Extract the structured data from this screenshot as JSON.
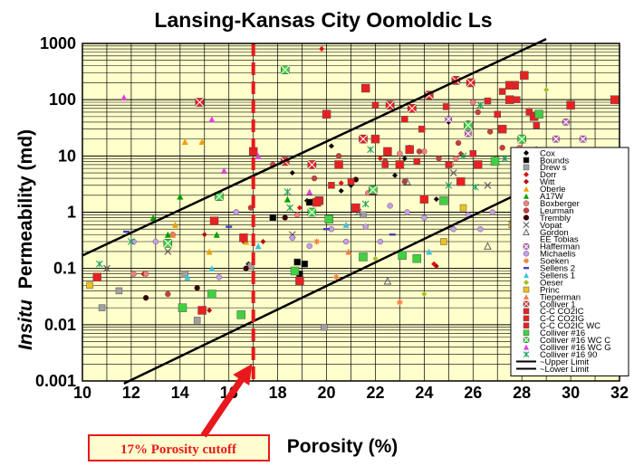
{
  "chart_data": {
    "type": "scatter",
    "title": "Lansing-Kansas City Oomoldic Ls",
    "xlabel": "Porosity (%)",
    "ylabel_italic": "Insitu",
    "ylabel": "Permeability (md)",
    "x_scale": "linear",
    "y_scale": "log",
    "xlim": [
      10,
      32
    ],
    "ylim": [
      0.001,
      1000
    ],
    "x_ticks": [
      "10",
      "12",
      "14",
      "16",
      "18",
      "20",
      "22",
      "24",
      "26",
      "28",
      "30",
      "32"
    ],
    "y_ticks": [
      "0.001",
      "0.01",
      "0.1",
      "1",
      "10",
      "100",
      "1000"
    ],
    "grid": true,
    "legend_position": "right",
    "annotation": "17% Porosity cutoff",
    "cutoff_x": 17,
    "lines": [
      {
        "name": "~Upper Limit",
        "x": [
          10,
          29
        ],
        "y": [
          0.17,
          1200
        ]
      },
      {
        "name": "~Lower Limit",
        "x": [
          11.7,
          30
        ],
        "y": [
          0.0009,
          6
        ]
      }
    ],
    "series": [
      {
        "name": "Cox",
        "marker": "diamond",
        "color": "#000000",
        "points": [
          [
            19.2,
            1.6
          ],
          [
            20.6,
            2.4
          ],
          [
            21.0,
            3.0
          ],
          [
            24.5,
            1.7
          ],
          [
            25.0,
            40
          ],
          [
            23.2,
            9
          ],
          [
            22.8,
            4.5
          ],
          [
            18.6,
            5
          ],
          [
            20.2,
            15
          ],
          [
            16.8,
            0.12
          ]
        ]
      },
      {
        "name": "Bounds",
        "marker": "square",
        "color": "#000000",
        "points": [
          [
            18.8,
            0.13
          ],
          [
            19.1,
            0.12
          ],
          [
            18.9,
            0.08
          ],
          [
            17.8,
            0.8
          ],
          [
            19.3,
            1.5
          ]
        ]
      },
      {
        "name": "Drew s",
        "marker": "square",
        "color": "#a0a0a0",
        "points": [
          [
            10.8,
            0.02
          ],
          [
            11.5,
            0.04
          ],
          [
            14.2,
            0.08
          ],
          [
            14.7,
            0.012
          ],
          [
            16.9,
            0.11
          ],
          [
            19.9,
            0.009
          ],
          [
            21.5,
            0.9
          ]
        ]
      },
      {
        "name": "Dorr",
        "marker": "diamond",
        "color": "#e01010",
        "points": [
          [
            19.8,
            800
          ],
          [
            18.9,
            1.2
          ],
          [
            20.6,
            3.3
          ],
          [
            21.1,
            3.7
          ],
          [
            22.2,
            9
          ],
          [
            24.4,
            0.12
          ],
          [
            25.5,
            11
          ]
        ]
      },
      {
        "name": "Witt",
        "marker": "diamond",
        "color": "#b01010",
        "points": [
          [
            12.5,
            0.08
          ],
          [
            15.0,
            0.4
          ],
          [
            16.6,
            0.3
          ],
          [
            17.4,
            0.3
          ],
          [
            15.2,
            0.018
          ],
          [
            24.5,
            0.11
          ]
        ]
      },
      {
        "name": "Oberle",
        "marker": "triangle",
        "color": "#f0a000",
        "points": [
          [
            13.8,
            0.6
          ],
          [
            14.2,
            18
          ],
          [
            14.9,
            18
          ],
          [
            15.2,
            0.2
          ],
          [
            16.7,
            0.3
          ]
        ]
      },
      {
        "name": "A17W",
        "marker": "triangle",
        "color": "#00a000",
        "points": [
          [
            12.9,
            0.8
          ],
          [
            13.5,
            0.4
          ],
          [
            14.0,
            1.9
          ],
          [
            15.5,
            0.4
          ],
          [
            18.4,
            1.7
          ],
          [
            26.9,
            9
          ],
          [
            27.9,
            13
          ]
        ]
      },
      {
        "name": "Boxberger",
        "marker": "circle",
        "color": "#f08080",
        "points": [
          [
            12.1,
            0.08
          ],
          [
            12.6,
            0.08
          ],
          [
            13.7,
            0.4
          ],
          [
            16.3,
            1.0
          ],
          [
            18.8,
            0.9
          ],
          [
            21.7,
            2.2
          ],
          [
            23.0,
            11
          ],
          [
            23.4,
            14
          ],
          [
            24.0,
            12
          ],
          [
            25.1,
            7
          ],
          [
            25.3,
            9
          ],
          [
            26.0,
            90
          ],
          [
            27.9,
            14
          ],
          [
            28.3,
            65
          ],
          [
            28.6,
            13
          ],
          [
            29.0,
            5
          ]
        ]
      },
      {
        "name": "Leurman",
        "marker": "circle",
        "color": "#c04040",
        "points": [
          [
            13.5,
            0.035
          ],
          [
            16.9,
            1.2
          ],
          [
            17.8,
            7
          ],
          [
            19.5,
            4
          ],
          [
            20.5,
            10
          ],
          [
            22.4,
            8
          ],
          [
            23.2,
            3.5
          ],
          [
            23.8,
            12
          ],
          [
            24.6,
            9
          ],
          [
            25.4,
            17
          ],
          [
            25.8,
            38
          ],
          [
            26.2,
            60
          ],
          [
            26.7,
            27
          ],
          [
            27.2,
            14
          ]
        ]
      },
      {
        "name": "Trembly",
        "marker": "circle",
        "color": "#300000",
        "points": [
          [
            12.6,
            0.03
          ],
          [
            14.7,
            0.045
          ],
          [
            16.7,
            0.1
          ],
          [
            18.3,
            0.8
          ],
          [
            21.2,
            3.8
          ]
        ]
      },
      {
        "name": "Vopat",
        "marker": "x",
        "color": "#606060",
        "points": [
          [
            11.0,
            0.1
          ],
          [
            13.5,
            0.2
          ],
          [
            18.6,
            0.4
          ],
          [
            21.3,
            1.0
          ],
          [
            25.2,
            5
          ],
          [
            26.6,
            3
          ]
        ]
      },
      {
        "name": "Gordon",
        "marker": "open-triangle",
        "color": "#606060",
        "points": [
          [
            22.5,
            0.06
          ],
          [
            26.6,
            0.25
          ],
          [
            23.3,
            3.5
          ]
        ]
      },
      {
        "name": "EE Tobias",
        "marker": "none",
        "color": "#000000",
        "points": []
      },
      {
        "name": "Hafferman",
        "marker": "x-box",
        "color": "#c060c0",
        "points": [
          [
            25.8,
            25
          ],
          [
            25.0,
            45
          ],
          [
            29.8,
            40
          ],
          [
            29.4,
            20
          ],
          [
            30.5,
            20
          ]
        ]
      },
      {
        "name": "Michaelis",
        "marker": "circle",
        "color": "#c0a0f0",
        "points": [
          [
            12.1,
            0.3
          ],
          [
            13.0,
            0.3
          ],
          [
            15.6,
            0.07
          ],
          [
            16.3,
            1.0
          ],
          [
            18.6,
            0.35
          ],
          [
            19.3,
            0.25
          ],
          [
            20.2,
            0.5
          ],
          [
            20.8,
            0.3
          ],
          [
            21.6,
            0.55
          ],
          [
            22.2,
            0.3
          ],
          [
            22.6,
            1.3
          ],
          [
            23.3,
            1.0
          ],
          [
            24.0,
            0.8
          ],
          [
            25.2,
            0.5
          ],
          [
            25.8,
            0.9
          ],
          [
            26.3,
            0.5
          ],
          [
            26.8,
            1.0
          ]
        ]
      },
      {
        "name": "Soeken",
        "marker": "star",
        "color": "#f08040",
        "points": [
          [
            23.0,
            0.025
          ],
          [
            20.4,
            0.07
          ],
          [
            19.6,
            0.3
          ]
        ]
      },
      {
        "name": "Sellens 2",
        "marker": "dash",
        "color": "#4040c0",
        "points": [
          [
            11.8,
            0.45
          ],
          [
            16.0,
            0.55
          ],
          [
            20.0,
            0.5
          ],
          [
            22.7,
            0.4
          ]
        ]
      },
      {
        "name": "Sellens 1",
        "marker": "triangle",
        "color": "#40c0e0",
        "points": [
          [
            14.3,
            0.07
          ],
          [
            15.3,
            0.1
          ],
          [
            17.2,
            0.25
          ],
          [
            20.8,
            0.6
          ],
          [
            24.2,
            0.2
          ]
        ]
      },
      {
        "name": "Oeser",
        "marker": "diamond",
        "color": "#a0c020",
        "points": [
          [
            29.0,
            150
          ],
          [
            24.0,
            0.035
          ],
          [
            22.0,
            0.15
          ]
        ]
      },
      {
        "name": "Princ",
        "marker": "square",
        "color": "#f0c020",
        "points": [
          [
            10.3,
            0.05
          ],
          [
            24.8,
            0.3
          ],
          [
            25.6,
            1.2
          ],
          [
            27.6,
            0.6
          ]
        ]
      },
      {
        "name": "Tieperman",
        "marker": "triangle",
        "color": "#f08040",
        "points": [
          [
            13.7,
            0.4
          ],
          [
            20.9,
            0.2
          ],
          [
            28.0,
            0.8
          ]
        ]
      },
      {
        "name": "Colliver 1",
        "marker": "x-box",
        "color": "#e82020",
        "points": [
          [
            14.8,
            90
          ],
          [
            21.5,
            20
          ],
          [
            24.2,
            120
          ],
          [
            25.3,
            220
          ],
          [
            25.9,
            200
          ],
          [
            22.6,
            80
          ],
          [
            19.4,
            7
          ],
          [
            18.3,
            8
          ],
          [
            23.5,
            70
          ]
        ]
      },
      {
        "name": "C-C CO2IC",
        "marker": "square",
        "color": "#e82020",
        "points": [
          [
            22.0,
            80
          ],
          [
            23.2,
            45
          ],
          [
            26.6,
            95
          ],
          [
            27.2,
            140
          ],
          [
            27.8,
            100
          ],
          [
            28.3,
            60
          ],
          [
            24.9,
            75
          ],
          [
            23.9,
            30
          ],
          [
            27.0,
            55
          ]
        ]
      },
      {
        "name": "C-C CO2IG",
        "marker": "square",
        "color": "#e82020",
        "points": [
          [
            20.2,
            3
          ],
          [
            21.0,
            3.5
          ],
          [
            22.4,
            7
          ],
          [
            23.7,
            8
          ],
          [
            25.0,
            7
          ],
          [
            26.0,
            11
          ],
          [
            28.6,
            35
          ]
        ]
      },
      {
        "name": "C-C CO2IC WC",
        "marker": "square",
        "color": "#e82020",
        "points": [
          [
            10.6,
            0.07
          ],
          [
            14.9,
            0.018
          ],
          [
            15.4,
            0.7
          ],
          [
            16.6,
            0.35
          ],
          [
            17.0,
            12
          ],
          [
            18.9,
            0.06
          ],
          [
            19.7,
            1.6
          ],
          [
            20.0,
            55
          ],
          [
            21.6,
            160
          ],
          [
            21.9,
            2.4
          ],
          [
            22.0,
            20
          ],
          [
            22.5,
            12
          ],
          [
            23.4,
            13
          ],
          [
            24.0,
            1.7
          ],
          [
            25.5,
            3.5
          ],
          [
            26.2,
            7
          ],
          [
            27.5,
            100
          ],
          [
            27.2,
            30
          ],
          [
            27.7,
            180
          ],
          [
            28.1,
            270
          ],
          [
            30.0,
            80
          ],
          [
            31.8,
            100
          ],
          [
            28.5,
            50
          ],
          [
            27.5,
            180
          ],
          [
            20.5,
            7
          ],
          [
            19.6,
            1.5
          ],
          [
            21.2,
            1.2
          ],
          [
            23.0,
            7
          ]
        ]
      },
      {
        "name": "Colliver #16",
        "marker": "square",
        "color": "#40d040",
        "points": [
          [
            14.1,
            0.02
          ],
          [
            15.3,
            0.035
          ],
          [
            16.5,
            0.015
          ],
          [
            18.7,
            0.09
          ],
          [
            21.5,
            0.16
          ],
          [
            23.1,
            0.17
          ],
          [
            23.7,
            0.15
          ],
          [
            24.8,
            1.6
          ],
          [
            26.9,
            8
          ],
          [
            28.7,
            55
          ],
          [
            20.1,
            0.75
          ]
        ]
      },
      {
        "name": "Colliver #16 WC C",
        "marker": "x-box",
        "color": "#40d040",
        "points": [
          [
            13.5,
            0.28
          ],
          [
            15.6,
            1.9
          ],
          [
            18.3,
            340
          ],
          [
            19.4,
            1.0
          ],
          [
            21.9,
            2.5
          ],
          [
            25.8,
            35
          ],
          [
            28.0,
            20
          ]
        ]
      },
      {
        "name": "Colliver #16 WC G",
        "marker": "triangle",
        "color": "#e040e0",
        "points": [
          [
            11.7,
            110
          ],
          [
            15.3,
            45
          ],
          [
            15.8,
            5.5
          ],
          [
            17.2,
            10
          ],
          [
            19.3,
            2.3
          ],
          [
            30.0,
            7
          ]
        ]
      },
      {
        "name": "Colliver #16 90",
        "marker": "asterisk",
        "color": "#20a060",
        "points": [
          [
            10.7,
            0.12
          ],
          [
            12.0,
            0.3
          ],
          [
            18.4,
            2.3
          ],
          [
            18.5,
            1.2
          ],
          [
            21.6,
            1.4
          ],
          [
            21.8,
            13
          ],
          [
            25.0,
            3
          ],
          [
            25.6,
            10
          ],
          [
            26.1,
            2.8
          ],
          [
            26.3,
            80
          ],
          [
            27.3,
            9
          ],
          [
            28.4,
            12
          ],
          [
            29.4,
            9
          ]
        ]
      }
    ]
  }
}
